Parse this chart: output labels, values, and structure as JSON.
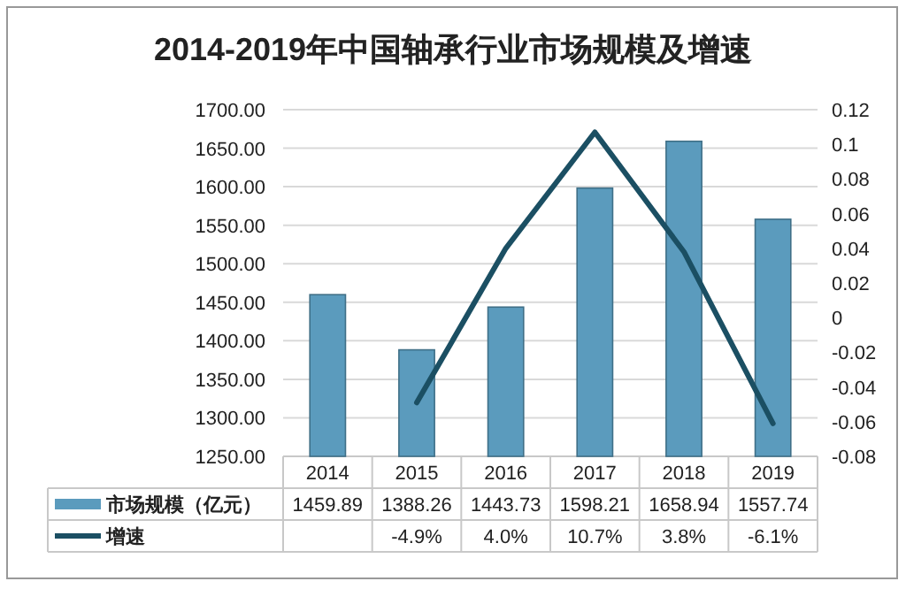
{
  "chart_data": {
    "type": "bar",
    "title": "2014-2019年中国轴承行业市场规模及增速",
    "categories": [
      "2014",
      "2015",
      "2016",
      "2017",
      "2018",
      "2019"
    ],
    "series": [
      {
        "name": "市场规模（亿元）",
        "color": "#5b9bbd",
        "values": [
          1459.89,
          1388.26,
          1443.73,
          1598.21,
          1658.94,
          1557.74
        ],
        "value_labels": [
          "1459.89",
          "1388.26",
          "1443.73",
          "1598.21",
          "1658.94",
          "1557.74"
        ]
      },
      {
        "name": "增速",
        "type": "line",
        "axis": "y2",
        "color": "#1b4f63",
        "values": [
          null,
          -0.049,
          0.04,
          0.107,
          0.038,
          -0.061
        ],
        "value_labels": [
          null,
          "-4.9%",
          "4.0%",
          "10.7%",
          "3.8%",
          "-6.1%"
        ]
      }
    ],
    "ylim": [
      1250,
      1700
    ],
    "yticks": [
      {
        "value": 1250,
        "label": "1250.00"
      },
      {
        "value": 1300,
        "label": "1300.00"
      },
      {
        "value": 1350,
        "label": "1350.00"
      },
      {
        "value": 1400,
        "label": "1400.00"
      },
      {
        "value": 1450,
        "label": "1450.00"
      },
      {
        "value": 1500,
        "label": "1500.00"
      },
      {
        "value": 1550,
        "label": "1550.00"
      },
      {
        "value": 1600,
        "label": "1600.00"
      },
      {
        "value": 1650,
        "label": "1650.00"
      },
      {
        "value": 1700,
        "label": "1700.00"
      }
    ],
    "y2lim": [
      -0.08,
      0.12
    ],
    "y2ticks": [
      -0.08,
      -0.06,
      -0.04,
      -0.02,
      0,
      0.02,
      0.04,
      0.06,
      0.08,
      0.1,
      0.12
    ],
    "grid": "y",
    "legend": "bottom left"
  }
}
